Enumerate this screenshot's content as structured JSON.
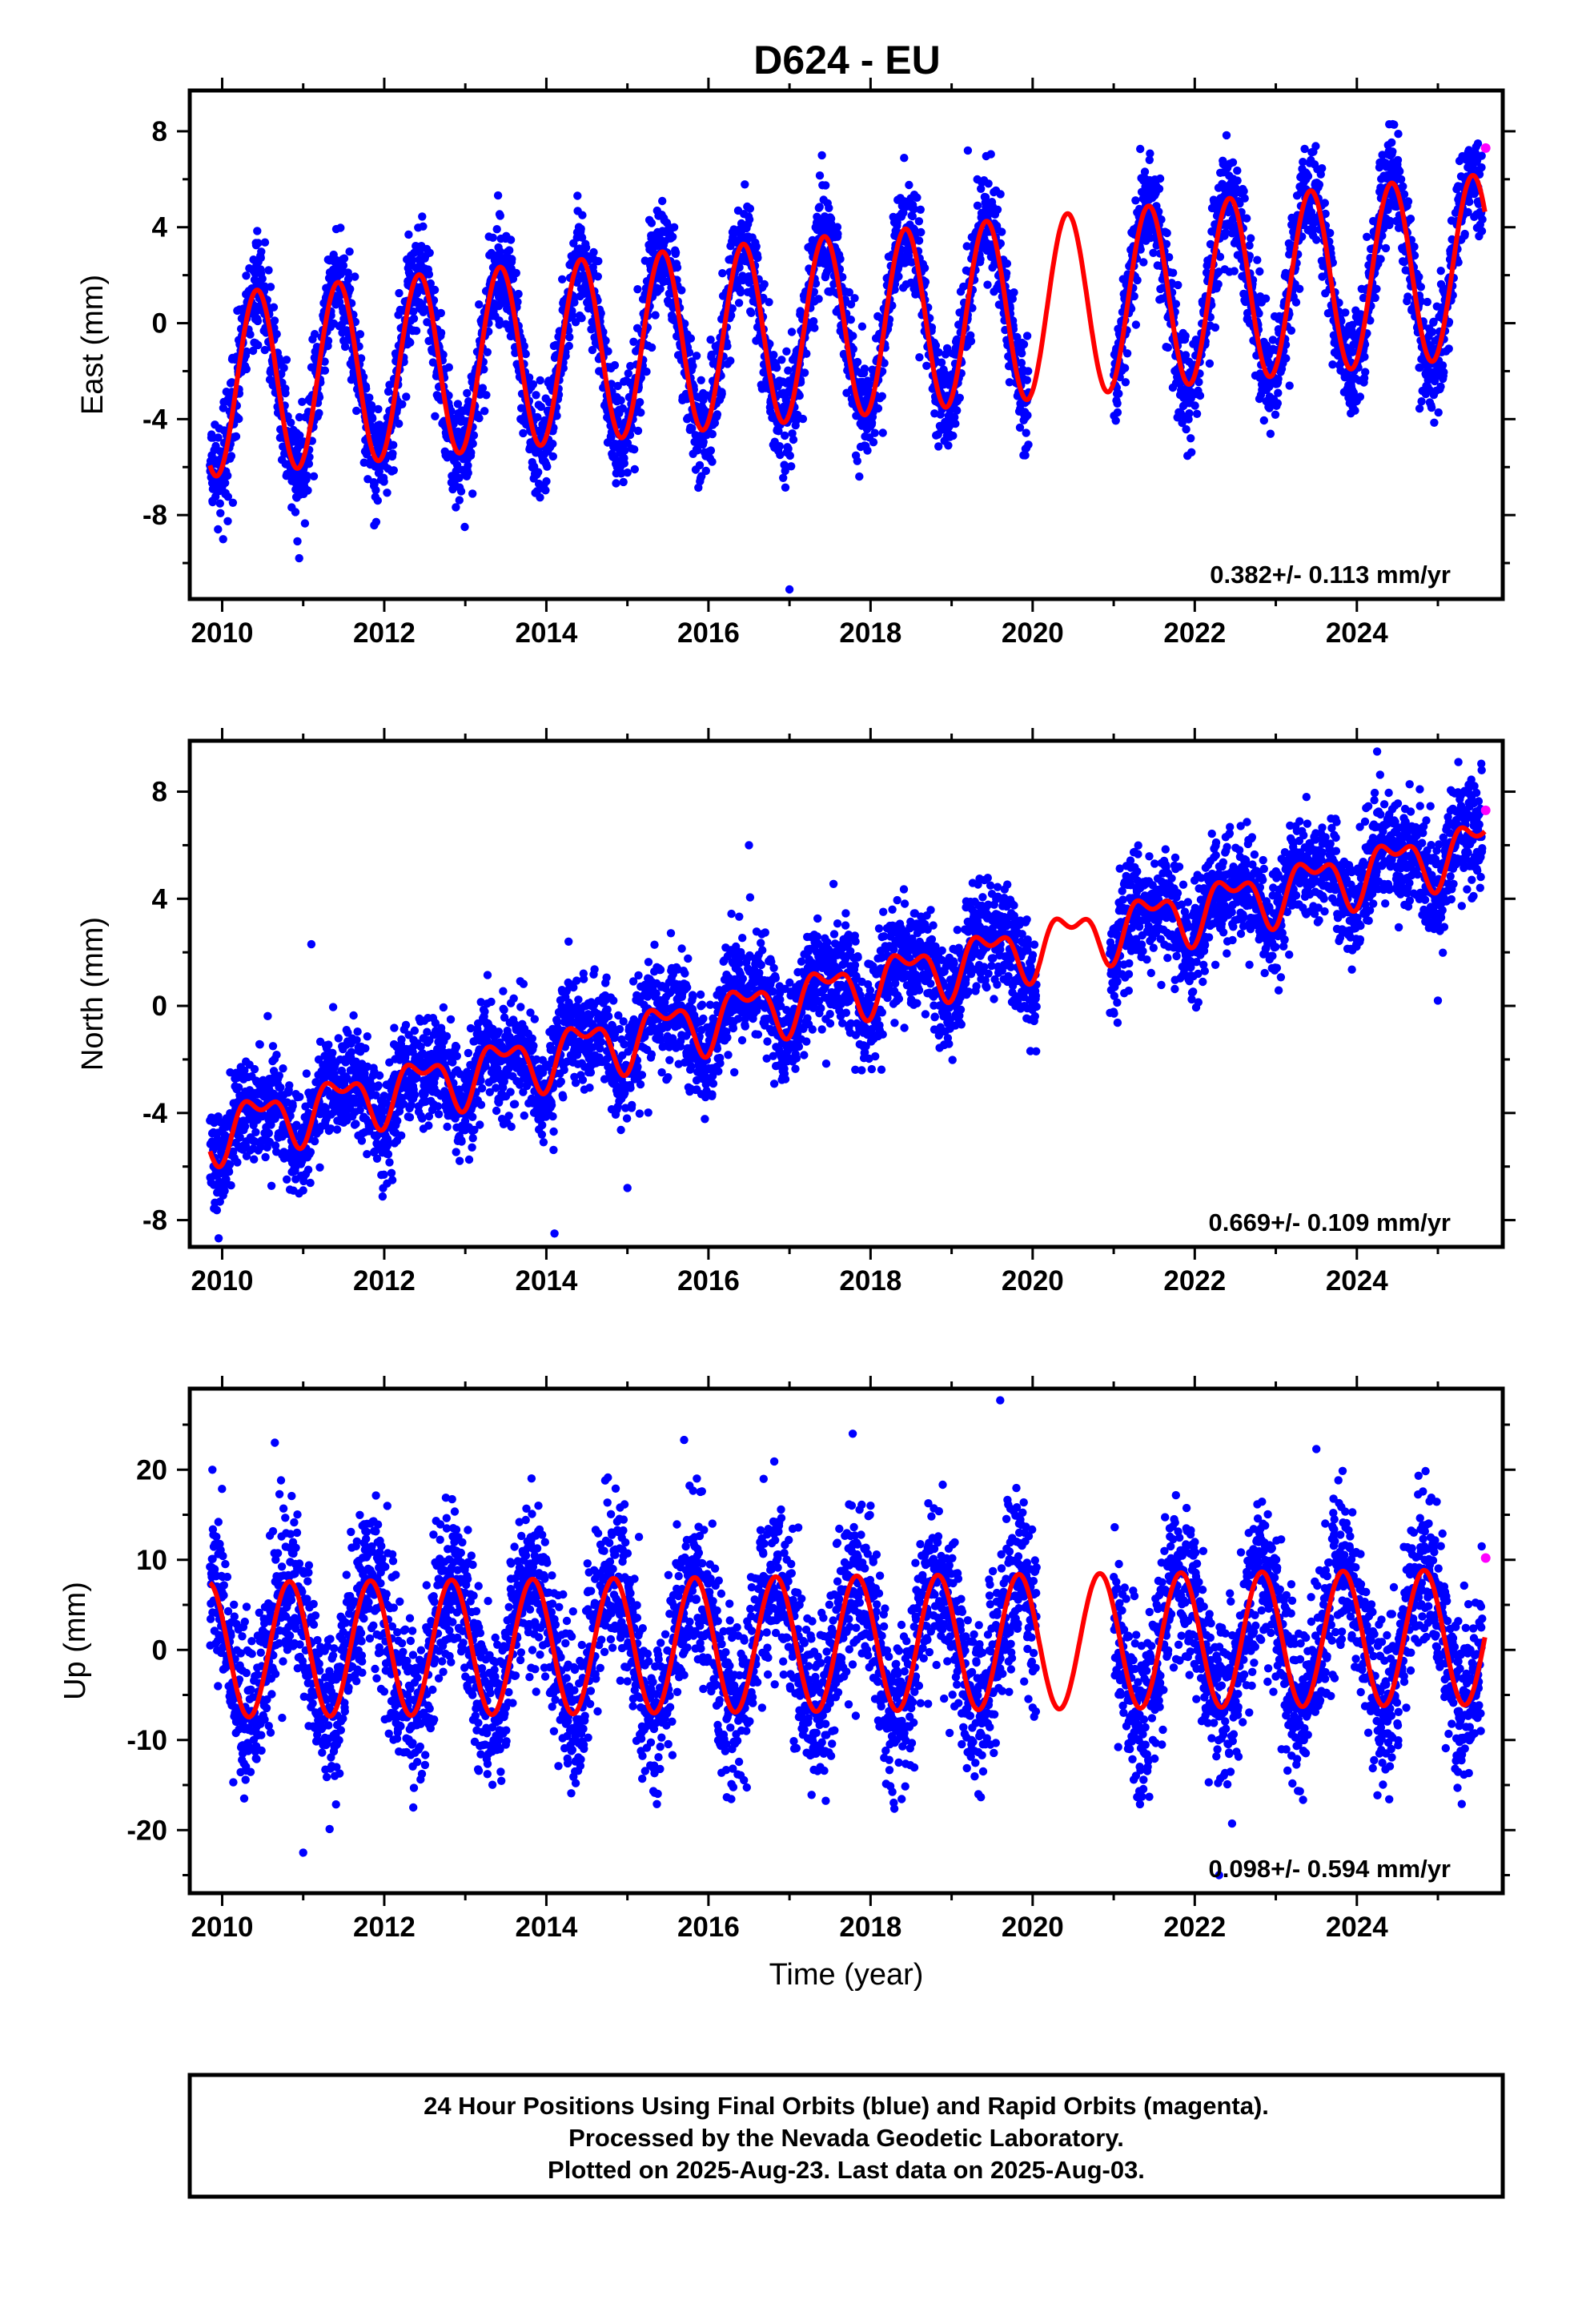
{
  "figure": {
    "title": "D624 - EU",
    "footer_lines": [
      "24 Hour Positions Using Final Orbits (blue) and Rapid Orbits (magenta).",
      "Processed by the Nevada Geodetic Laboratory.",
      "Plotted on 2025-Aug-23. Last data on 2025-Aug-03."
    ],
    "colors": {
      "final": "#0000ff",
      "rapid": "#ff00ff",
      "model": "#ff0000",
      "frame": "#000000"
    }
  },
  "chart_data": [
    {
      "type": "scatter",
      "title": "D624 - EU",
      "xlabel": "",
      "ylabel": "East (mm)",
      "xlim": [
        2009.6,
        2025.8
      ],
      "ylim": [
        -11.5,
        9.7
      ],
      "xticks": [
        2010,
        2012,
        2014,
        2016,
        2018,
        2020,
        2022,
        2024
      ],
      "yticks": [
        -8,
        -4,
        0,
        4,
        8
      ],
      "rate_label": "0.382+/- 0.113 mm/yr",
      "data_range": [
        2009.85,
        2025.55
      ],
      "data_gap": [
        2019.95,
        2021.0
      ],
      "model": {
        "offset": 0.7,
        "trend_start": -2.6,
        "trend_end": 2.4,
        "annual_amp": 3.8,
        "annual_phase": 2010.18,
        "semiannual_amp": 0.0,
        "semiannual_phase": 0.0
      },
      "noise": 1.1,
      "final_orbits_last": [
        2025.55,
        6.5
      ],
      "rapid_orbits": [
        [
          2025.59,
          7.3
        ]
      ],
      "outliers": [
        [
          2010.95,
          -9.8
        ],
        [
          2017.0,
          -11.1
        ],
        [
          2021.95,
          -4.8
        ],
        [
          2024.9,
          -3.3
        ],
        [
          2017.4,
          7.0
        ],
        [
          2019.2,
          7.2
        ]
      ],
      "grid": false
    },
    {
      "type": "scatter",
      "xlabel": "",
      "ylabel": "North (mm)",
      "xlim": [
        2009.6,
        2025.8
      ],
      "ylim": [
        -9.0,
        9.9
      ],
      "xticks": [
        2010,
        2012,
        2014,
        2016,
        2018,
        2020,
        2022,
        2024
      ],
      "yticks": [
        -8,
        -4,
        0,
        4,
        8
      ],
      "rate_label": "0.669+/- 0.109 mm/yr",
      "data_range": [
        2009.85,
        2025.55
      ],
      "data_gap": [
        2020.05,
        2020.95
      ],
      "model": {
        "offset": -4.7,
        "trend_start": -4.7,
        "trend_end": 6.0,
        "annual_amp": 0.9,
        "annual_phase": 2010.2,
        "semiannual_amp": 0.5,
        "semiannual_phase": 2010.1
      },
      "noise": 1.0,
      "final_orbits_last": [
        2025.55,
        6.5
      ],
      "rapid_orbits": [
        [
          2025.59,
          7.3
        ]
      ],
      "outliers": [
        [
          2011.1,
          2.3
        ],
        [
          2014.1,
          -8.5
        ],
        [
          2015.0,
          -6.8
        ],
        [
          2016.5,
          6.0
        ],
        [
          2024.25,
          9.5
        ],
        [
          2025.0,
          0.2
        ]
      ],
      "grid": false
    },
    {
      "type": "scatter",
      "xlabel": "Time (year)",
      "ylabel": "Up (mm)",
      "xlim": [
        2009.6,
        2025.8
      ],
      "ylim": [
        -27,
        29
      ],
      "xticks": [
        2010,
        2012,
        2014,
        2016,
        2018,
        2020,
        2022,
        2024
      ],
      "yticks": [
        -20,
        -10,
        0,
        10,
        20
      ],
      "rate_label": "0.098+/- 0.594 mm/yr",
      "data_range": [
        2009.85,
        2025.55
      ],
      "data_gap": [
        2020.05,
        2021.0
      ],
      "model": {
        "offset": 0.0,
        "trend_start": 0.0,
        "trend_end": 1.4,
        "annual_amp": 7.5,
        "annual_phase": 2010.58,
        "semiannual_amp": 0.0,
        "semiannual_phase": 0.0
      },
      "noise": 4.6,
      "final_orbits_last": [
        2025.55,
        6.0
      ],
      "rapid_orbits": [
        [
          2025.59,
          10.2
        ]
      ],
      "outliers": [
        [
          2009.88,
          20.0
        ],
        [
          2010.65,
          23.0
        ],
        [
          2015.7,
          23.3
        ],
        [
          2017.78,
          24.0
        ],
        [
          2019.6,
          27.7
        ],
        [
          2023.5,
          22.3
        ],
        [
          2011.0,
          -22.5
        ],
        [
          2022.3,
          -25.0
        ]
      ],
      "grid": false
    }
  ]
}
